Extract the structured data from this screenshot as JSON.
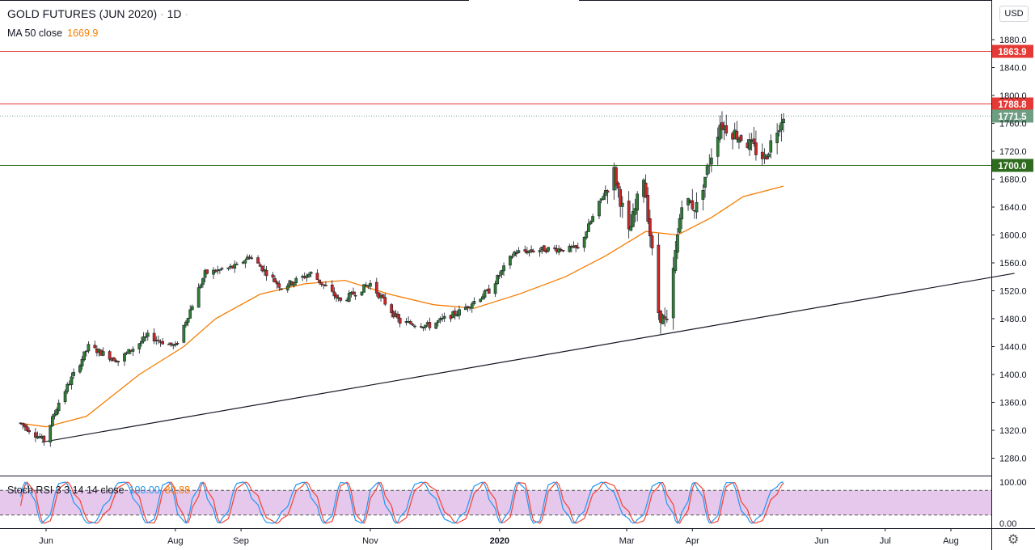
{
  "header": {
    "symbol": "GOLD FUTURES (JUN 2020)",
    "interval": "1D",
    "ma_label": "MA 50 close",
    "ma_value": "1669.9",
    "currency": "USD"
  },
  "oscillator": {
    "label": "Stoch RSI 3 3 14 14 close",
    "k_value": "100.00",
    "d_value": "80.88",
    "upper_band": 80,
    "lower_band": 20,
    "ticks": [
      "100.00",
      "0.00"
    ]
  },
  "price_axis": {
    "ticks": [
      "1880.0",
      "1840.0",
      "1800.0",
      "1760.0",
      "1720.0",
      "1680.0",
      "1640.0",
      "1600.0",
      "1560.0",
      "1520.0",
      "1480.0",
      "1440.0",
      "1400.0",
      "1360.0",
      "1320.0",
      "1280.0"
    ]
  },
  "time_axis": {
    "labels": [
      "Jun",
      "Aug",
      "Sep",
      "Nov",
      "2020",
      "Mar",
      "Apr",
      "Jun",
      "Jul",
      "Aug"
    ]
  },
  "levels": [
    {
      "price": 1863.9,
      "label": "1863.9",
      "color": "#e53935",
      "style": "solid"
    },
    {
      "price": 1788.8,
      "label": "1788.8",
      "color": "#e53935",
      "style": "solid"
    },
    {
      "price": 1771.5,
      "label": "1771.5",
      "color": "#6e9e82",
      "style": "dotted"
    },
    {
      "price": 1700.0,
      "label": "1700.0",
      "color": "#2e6b1e",
      "style": "solid"
    }
  ],
  "colors": {
    "up": "#26a69a",
    "down": "#ef5350",
    "ma": "#f57c00",
    "stoch_k": "#2196f3",
    "stoch_d": "#f44336",
    "band_fill": "#e1bee7"
  },
  "icons": {
    "settings": "gear-icon"
  },
  "chart_data": {
    "type": "candlestick",
    "title": "GOLD FUTURES (JUN 2020)",
    "interval": "1D",
    "y_range": [
      1260,
      1900
    ],
    "trendline": {
      "from": {
        "date": "2019-05-30",
        "price": 1303
      },
      "to": {
        "date": "2020-08-31",
        "price": 1545
      }
    },
    "close_path": [
      {
        "date": "2019-05-20",
        "close": 1330
      },
      {
        "date": "2019-05-31",
        "close": 1305
      },
      {
        "date": "2019-06-07",
        "close": 1360
      },
      {
        "date": "2019-06-21",
        "close": 1440
      },
      {
        "date": "2019-07-05",
        "close": 1420
      },
      {
        "date": "2019-07-19",
        "close": 1455
      },
      {
        "date": "2019-08-01",
        "close": 1440
      },
      {
        "date": "2019-08-15",
        "close": 1545
      },
      {
        "date": "2019-08-30",
        "close": 1555
      },
      {
        "date": "2019-09-05",
        "close": 1570
      },
      {
        "date": "2019-09-20",
        "close": 1525
      },
      {
        "date": "2019-10-04",
        "close": 1545
      },
      {
        "date": "2019-10-18",
        "close": 1505
      },
      {
        "date": "2019-11-01",
        "close": 1530
      },
      {
        "date": "2019-11-15",
        "close": 1475
      },
      {
        "date": "2019-11-29",
        "close": 1470
      },
      {
        "date": "2019-12-13",
        "close": 1490
      },
      {
        "date": "2019-12-27",
        "close": 1520
      },
      {
        "date": "2020-01-08",
        "close": 1575
      },
      {
        "date": "2020-01-24",
        "close": 1580
      },
      {
        "date": "2020-02-07",
        "close": 1580
      },
      {
        "date": "2020-02-24",
        "close": 1690
      },
      {
        "date": "2020-03-02",
        "close": 1600
      },
      {
        "date": "2020-03-09",
        "close": 1685
      },
      {
        "date": "2020-03-16",
        "close": 1490
      },
      {
        "date": "2020-03-20",
        "close": 1470
      },
      {
        "date": "2020-03-27",
        "close": 1650
      },
      {
        "date": "2020-04-03",
        "close": 1640
      },
      {
        "date": "2020-04-14",
        "close": 1760
      },
      {
        "date": "2020-04-24",
        "close": 1740
      },
      {
        "date": "2020-05-05",
        "close": 1710
      },
      {
        "date": "2020-05-14",
        "close": 1775
      }
    ],
    "ma50": [
      {
        "date": "2019-05-20",
        "value": 1330
      },
      {
        "date": "2019-06-01",
        "value": 1325
      },
      {
        "date": "2019-06-20",
        "value": 1340
      },
      {
        "date": "2019-07-15",
        "value": 1400
      },
      {
        "date": "2019-08-05",
        "value": 1440
      },
      {
        "date": "2019-08-20",
        "value": 1480
      },
      {
        "date": "2019-09-10",
        "value": 1515
      },
      {
        "date": "2019-10-01",
        "value": 1530
      },
      {
        "date": "2019-10-20",
        "value": 1535
      },
      {
        "date": "2019-11-10",
        "value": 1515
      },
      {
        "date": "2019-12-01",
        "value": 1500
      },
      {
        "date": "2019-12-20",
        "value": 1495
      },
      {
        "date": "2020-01-10",
        "value": 1515
      },
      {
        "date": "2020-02-01",
        "value": 1540
      },
      {
        "date": "2020-02-20",
        "value": 1570
      },
      {
        "date": "2020-03-10",
        "value": 1605
      },
      {
        "date": "2020-03-25",
        "value": 1600
      },
      {
        "date": "2020-04-10",
        "value": 1625
      },
      {
        "date": "2020-04-25",
        "value": 1655
      },
      {
        "date": "2020-05-14",
        "value": 1670
      }
    ],
    "xlabel": "",
    "ylabel": ""
  }
}
